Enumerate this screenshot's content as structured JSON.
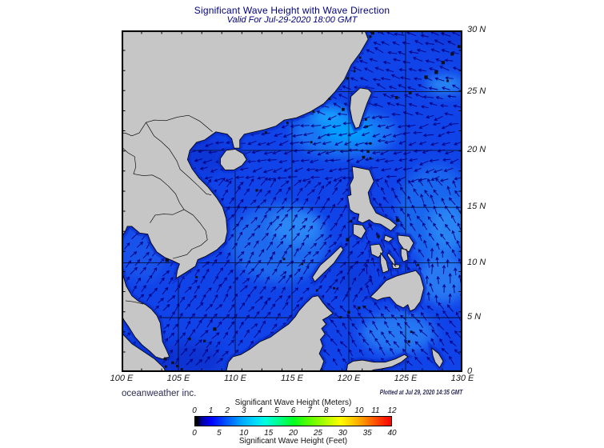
{
  "header": {
    "title": "Significant Wave Height with Wave Direction",
    "subtitle": "Valid For Jul-29-2020 18:00 GMT"
  },
  "footer": {
    "credit": "oceanweather inc.",
    "plotted_at": "Plotted at Jul 29, 2020 14:35 GMT"
  },
  "axes": {
    "lon_labels": [
      {
        "deg": 100,
        "label": "100 E"
      },
      {
        "deg": 105,
        "label": "105 E"
      },
      {
        "deg": 110,
        "label": "110 E"
      },
      {
        "deg": 115,
        "label": "115 E"
      },
      {
        "deg": 120,
        "label": "120 E"
      },
      {
        "deg": 125,
        "label": "125 E"
      },
      {
        "deg": 130,
        "label": "130 E"
      }
    ],
    "lat_labels": [
      {
        "deg": 30,
        "label": "30 N"
      },
      {
        "deg": 25,
        "label": "25 N"
      },
      {
        "deg": 20,
        "label": "20 N"
      },
      {
        "deg": 15,
        "label": "15 N"
      },
      {
        "deg": 10,
        "label": "10 N"
      },
      {
        "deg": 5,
        "label": "5 N"
      },
      {
        "deg": 0,
        "label": "0"
      }
    ]
  },
  "colorbar": {
    "meters_label": "Significant Wave Height (Meters)",
    "feet_label": "Significant Wave Height (Feet)",
    "meters_ticks": [
      "0",
      "1",
      "2",
      "3",
      "4",
      "5",
      "6",
      "7",
      "8",
      "9",
      "10",
      "11",
      "12"
    ],
    "feet_ticks": [
      "0",
      "5",
      "10",
      "15",
      "20",
      "25",
      "30",
      "35",
      "40"
    ],
    "gradient_stops": [
      [
        "0%",
        "#000000"
      ],
      [
        "1.2%",
        "#000000"
      ],
      [
        "3%",
        "#000095"
      ],
      [
        "8%",
        "#0000FF"
      ],
      [
        "16%",
        "#0055FF"
      ],
      [
        "24%",
        "#00AAFF"
      ],
      [
        "30%",
        "#00D5FF"
      ],
      [
        "36%",
        "#00FFDD"
      ],
      [
        "43%",
        "#00FF88"
      ],
      [
        "50%",
        "#00FF22"
      ],
      [
        "58%",
        "#58FF00"
      ],
      [
        "66%",
        "#AAFF00"
      ],
      [
        "74%",
        "#FFFF00"
      ],
      [
        "80%",
        "#FFCC00"
      ],
      [
        "86%",
        "#FF9100"
      ],
      [
        "93%",
        "#FF4400"
      ],
      [
        "100%",
        "#FF0000"
      ]
    ]
  },
  "chart_data": {
    "type": "heatmap",
    "title": "Significant Wave Height with Wave Direction",
    "valid_time": "Jul-29-2020 18:00 GMT",
    "projection": "mercator",
    "region": {
      "lon_min": 100,
      "lon_max": 130,
      "lat_min": 0,
      "lat_max": 30
    },
    "grid_interval_deg": 5,
    "units_primary": "meters",
    "units_secondary": "feet",
    "scale_meters": [
      0,
      12
    ],
    "scale_feet": [
      0,
      40
    ],
    "base_wave_height_m": 1.5,
    "shading_features": [
      {
        "name": "luzon-strait-west-halo",
        "cx": 119.6,
        "cy": 21.5,
        "rx": 4.6,
        "ry": 2.1,
        "color": "#1E7CF5",
        "opacity": 0.85,
        "approx_m": 2.0
      },
      {
        "name": "luzon-strait-west-core",
        "cx": 119.9,
        "cy": 21.6,
        "rx": 2.3,
        "ry": 1.05,
        "color": "#00A2FF",
        "opacity": 0.95,
        "approx_m": 2.5
      },
      {
        "name": "taiwan-strait-south",
        "cx": 118.2,
        "cy": 22.9,
        "rx": 1.5,
        "ry": 0.8,
        "color": "#18A4FF",
        "opacity": 0.9,
        "approx_m": 2.5
      },
      {
        "name": "central-south-china-sea",
        "cx": 113.8,
        "cy": 11.8,
        "rx": 4.3,
        "ry": 3.4,
        "color": "#2173F0",
        "opacity": 0.8,
        "approx_m": 2.0
      },
      {
        "name": "central-scs-core",
        "cx": 115.3,
        "cy": 13.2,
        "rx": 2.3,
        "ry": 1.5,
        "color": "#2F8CF7",
        "opacity": 0.85,
        "approx_m": 2.2
      },
      {
        "name": "philippine-sea",
        "cx": 127.6,
        "cy": 14.5,
        "rx": 3.3,
        "ry": 4.3,
        "color": "#1E6FF0",
        "opacity": 0.8,
        "approx_m": 1.8
      },
      {
        "name": "philippine-sea-core",
        "cx": 128.7,
        "cy": 13.2,
        "rx": 1.7,
        "ry": 2.1,
        "color": "#2E8CF5",
        "opacity": 0.8,
        "approx_m": 2.2
      },
      {
        "name": "east-of-mindanao",
        "cx": 128.3,
        "cy": 8.6,
        "rx": 2.2,
        "ry": 2.2,
        "color": "#2E86F5",
        "opacity": 0.8,
        "approx_m": 2.2
      },
      {
        "name": "ryukyu-south",
        "cx": 128.5,
        "cy": 25.6,
        "rx": 1.7,
        "ry": 0.8,
        "color": "#2E96F7",
        "opacity": 0.85,
        "approx_m": 2.2
      },
      {
        "name": "celebes-sea",
        "cx": 124.3,
        "cy": 3.6,
        "rx": 3.3,
        "ry": 1.8,
        "color": "#2B84F5",
        "opacity": 0.8,
        "approx_m": 2.0
      },
      {
        "name": "gulf-of-tonkin",
        "cx": 107.3,
        "cy": 19.6,
        "rx": 2.0,
        "ry": 1.6,
        "color": "#0A34D6",
        "opacity": 0.9,
        "approx_m": 1.0
      },
      {
        "name": "karimata-strait",
        "cx": 105.6,
        "cy": 1.1,
        "rx": 3.4,
        "ry": 1.6,
        "color": "#0830CF",
        "opacity": 0.9,
        "approx_m": 1.0
      },
      {
        "name": "gulf-of-thailand",
        "cx": 101.9,
        "cy": 10.8,
        "rx": 2.1,
        "ry": 2.4,
        "color": "#1A5AEC",
        "opacity": 0.7,
        "approx_m": 1.5
      },
      {
        "name": "sulu-sea",
        "cx": 120.5,
        "cy": 8.8,
        "rx": 1.8,
        "ry": 1.6,
        "color": "#0D38D8",
        "opacity": 0.6,
        "approx_m": 1.2
      },
      {
        "name": "east-china-sea-north",
        "cx": 129.3,
        "cy": 29.5,
        "rx": 3.0,
        "ry": 1.0,
        "color": "#0C32D2",
        "opacity": 0.55,
        "approx_m": 1.2
      }
    ],
    "wave_direction_zones": [
      {
        "name": "celebes-molucca-seas",
        "lon": [
          116.5,
          130.5
        ],
        "lat": [
          -0.5,
          6.2
        ],
        "bearing_deg": 320
      },
      {
        "name": "pacific-east-mindanao",
        "lon": [
          121.5,
          130.5
        ],
        "lat": [
          6.2,
          10.5
        ],
        "bearing_deg": 352
      },
      {
        "name": "philippine-sea-east-luzon",
        "lon": [
          121.5,
          130.5
        ],
        "lat": [
          10.5,
          17.0
        ],
        "bearing_deg": 330
      },
      {
        "name": "south-china-sea-sw-monsoon",
        "lon": [
          99.5,
          122.5
        ],
        "lat": [
          -0.5,
          17.0
        ],
        "bearing_deg": 40
      },
      {
        "name": "scs-north-luzon-strait",
        "lon": [
          99.5,
          130.5
        ],
        "lat": [
          17.0,
          23.0
        ],
        "bearing_deg": 256
      },
      {
        "name": "east-china-sea",
        "lon": [
          99.5,
          130.5
        ],
        "lat": [
          23.0,
          30.5
        ],
        "bearing_deg": 288
      }
    ],
    "colors": {
      "ocean": "#1144E8",
      "land": "#C6C6C6",
      "coastline": "#000000",
      "shallow_rim": "#0A2ECC",
      "arrow": "#000082",
      "grid": "#000000",
      "title_text": "#00007E",
      "axis_text": "#1A1A1A",
      "credit_text": "#2B2B55"
    }
  }
}
